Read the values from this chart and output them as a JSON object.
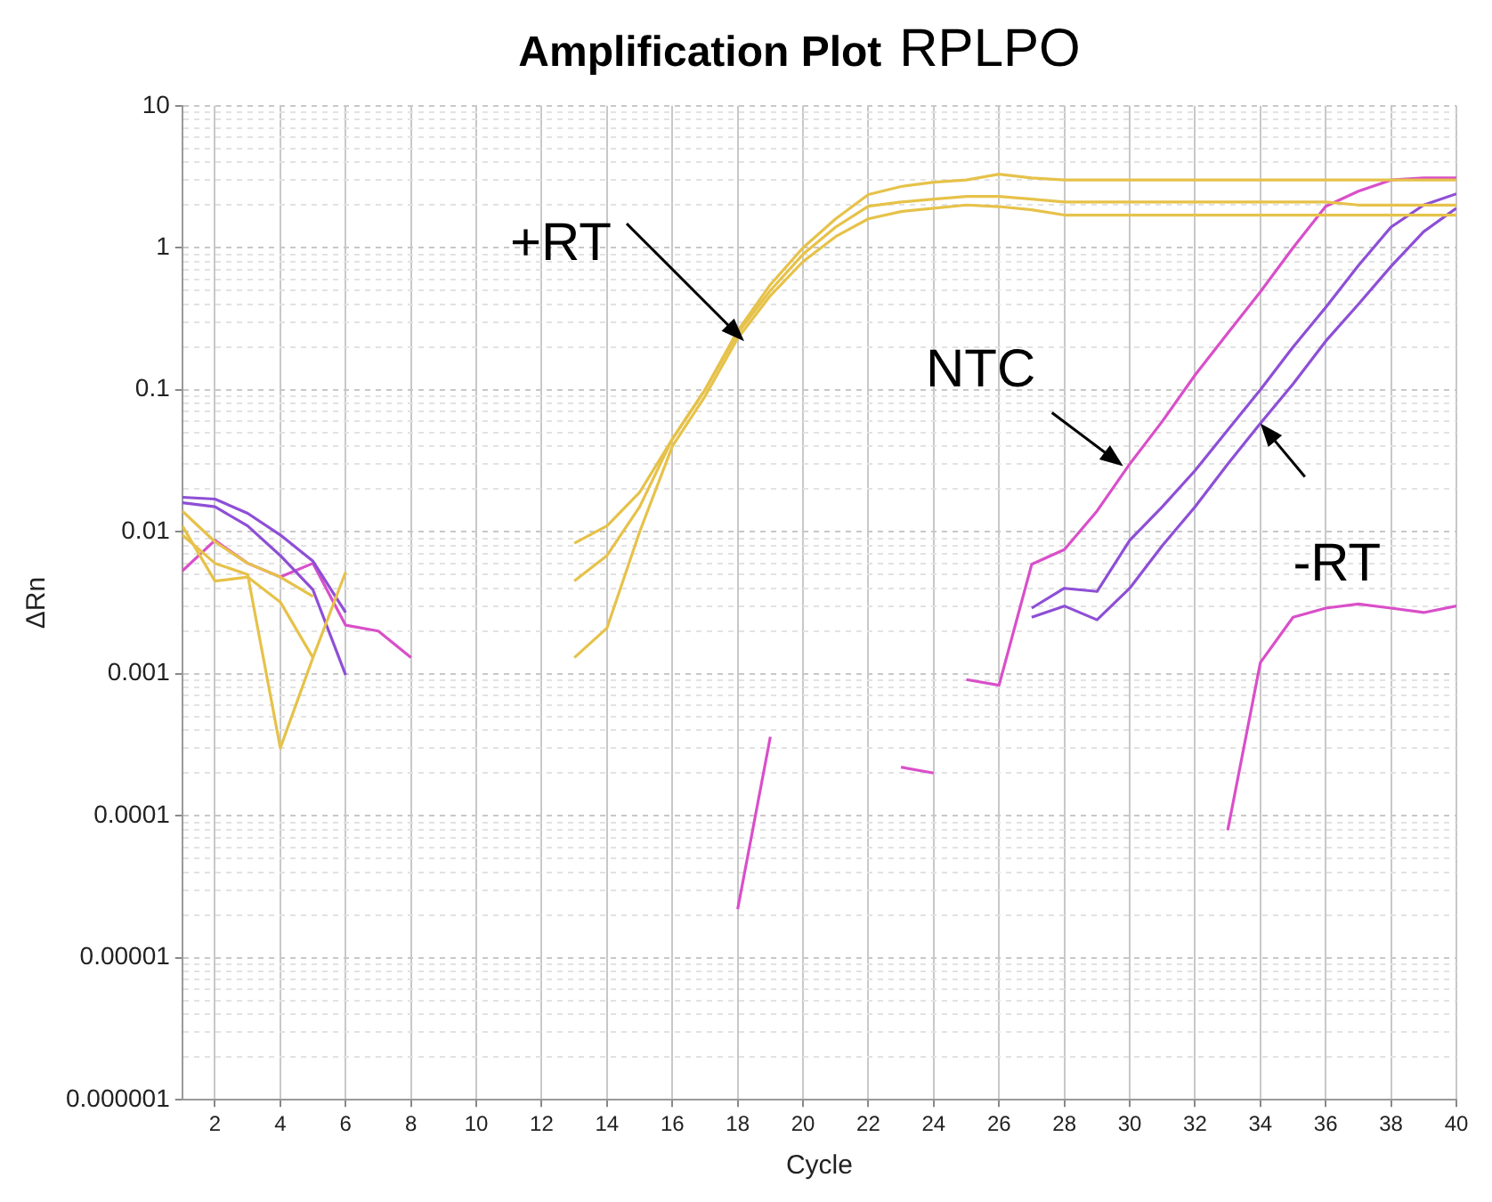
{
  "chart_data": {
    "type": "line",
    "title": "Amplification Plot",
    "subtitle": "RPLPO",
    "xlabel": "Cycle",
    "ylabel": "ΔRn",
    "x": [
      1,
      2,
      3,
      4,
      5,
      6,
      7,
      8,
      9,
      10,
      11,
      12,
      13,
      14,
      15,
      16,
      17,
      18,
      19,
      20,
      21,
      22,
      23,
      24,
      25,
      26,
      27,
      28,
      29,
      30,
      31,
      32,
      33,
      34,
      35,
      36,
      37,
      38,
      39,
      40
    ],
    "series": [
      {
        "color": "#e6c24a",
        "values": [
          0.014,
          0.0085,
          0.006,
          0.0048,
          0.0035,
          null,
          null,
          null,
          null,
          null,
          null,
          null,
          0.0083,
          0.011,
          0.019,
          0.045,
          0.1,
          0.26,
          0.55,
          1.0,
          1.6,
          2.37,
          2.7,
          2.9,
          3.0,
          3.3,
          3.1,
          3.0,
          3.0,
          3.0,
          3.0,
          3.0,
          3.0,
          3.0,
          3.0,
          3.0,
          3.0,
          3.0,
          3.0,
          3.0
        ]
      },
      {
        "color": "#e6c24a",
        "values": [
          0.011,
          0.0045,
          0.0048,
          0.0032,
          0.0013,
          null,
          null,
          null,
          null,
          null,
          null,
          null,
          0.0045,
          0.0068,
          0.015,
          0.045,
          0.1,
          0.25,
          0.5,
          0.9,
          1.4,
          1.96,
          2.1,
          2.2,
          2.3,
          2.3,
          2.2,
          2.1,
          2.1,
          2.1,
          2.1,
          2.1,
          2.1,
          2.1,
          2.1,
          2.1,
          2.0,
          2.0,
          2.0,
          2.0
        ]
      },
      {
        "color": "#e6c24a",
        "values": [
          0.0095,
          0.006,
          0.005,
          0.0003,
          0.0013,
          0.0052,
          null,
          null,
          null,
          null,
          null,
          null,
          0.0013,
          0.0021,
          0.01,
          0.04,
          0.09,
          0.23,
          0.46,
          0.8,
          1.2,
          1.6,
          1.8,
          1.9,
          2.0,
          1.95,
          1.85,
          1.7,
          1.7,
          1.7,
          1.7,
          1.7,
          1.7,
          1.7,
          1.7,
          1.7,
          1.7,
          1.7,
          1.7,
          1.7
        ]
      },
      {
        "color": "#8e4fd6",
        "values": [
          0.016,
          0.015,
          0.011,
          0.0068,
          0.0039,
          0.00098,
          null,
          null,
          null,
          null,
          null,
          null,
          null,
          null,
          null,
          null,
          null,
          null,
          null,
          null,
          null,
          null,
          null,
          null,
          null,
          null,
          0.0029,
          0.004,
          0.0038,
          0.0087,
          0.015,
          0.027,
          0.052,
          0.1,
          0.2,
          0.38,
          0.75,
          1.4,
          2.0,
          2.4
        ]
      },
      {
        "color": "#8e4fd6",
        "values": [
          0.0175,
          0.017,
          0.0135,
          0.0095,
          0.0062,
          0.0027,
          null,
          null,
          null,
          null,
          null,
          null,
          null,
          null,
          null,
          null,
          null,
          null,
          null,
          null,
          null,
          null,
          null,
          null,
          null,
          null,
          0.0025,
          0.003,
          0.0024,
          0.004,
          0.008,
          0.015,
          0.03,
          0.058,
          0.11,
          0.22,
          0.4,
          0.74,
          1.3,
          1.9
        ]
      },
      {
        "color": "#d94fc9",
        "values": [
          0.0053,
          0.0087,
          0.006,
          0.0048,
          0.006,
          0.0022,
          0.002,
          0.0013,
          null,
          null,
          null,
          null,
          null,
          null,
          null,
          null,
          null,
          null,
          null,
          null,
          null,
          null,
          null,
          null,
          0.00091,
          0.00083,
          0.0059,
          0.0075,
          0.014,
          0.03,
          0.06,
          0.127,
          0.25,
          0.49,
          1.0,
          1.96,
          2.5,
          3.0,
          3.1,
          3.1
        ]
      },
      {
        "color": "#d94fc9",
        "values": [
          null,
          null,
          null,
          null,
          null,
          null,
          null,
          null,
          null,
          null,
          null,
          null,
          null,
          null,
          null,
          null,
          null,
          2.2e-05,
          0.00036,
          null,
          null,
          null,
          0.00022,
          0.0002,
          null,
          null,
          null,
          null,
          null,
          null,
          null,
          null,
          7.9e-05,
          0.0012,
          0.0025,
          0.0029,
          0.0031,
          0.0029,
          0.0027,
          0.003
        ]
      }
    ],
    "log": "y",
    "xlim": [
      1,
      40
    ],
    "xticks": [
      2,
      4,
      6,
      8,
      10,
      12,
      14,
      16,
      18,
      20,
      22,
      24,
      26,
      28,
      30,
      32,
      34,
      36,
      38,
      40
    ],
    "ylim": [
      1e-06,
      10
    ],
    "yticks": [
      {
        "value": 1e-06,
        "label": "0.000001"
      },
      {
        "value": 2e-06,
        "label": null
      },
      {
        "value": 3e-06,
        "label": null
      },
      {
        "value": 4e-06,
        "label": null
      },
      {
        "value": 5e-06,
        "label": null
      },
      {
        "value": 6e-06,
        "label": null
      },
      {
        "value": 7e-06,
        "label": null
      },
      {
        "value": 8e-06,
        "label": null
      },
      {
        "value": 9e-06,
        "label": null
      },
      {
        "value": 1e-05,
        "label": "0.00001"
      },
      {
        "value": 2e-05,
        "label": null
      },
      {
        "value": 3e-05,
        "label": null
      },
      {
        "value": 4e-05,
        "label": null
      },
      {
        "value": 5e-05,
        "label": null
      },
      {
        "value": 6e-05,
        "label": null
      },
      {
        "value": 7e-05,
        "label": null
      },
      {
        "value": 8e-05,
        "label": null
      },
      {
        "value": 9e-05,
        "label": null
      },
      0.0001,
      {
        "value": 0.0002,
        "label": null
      },
      {
        "value": 0.0003,
        "label": null
      },
      {
        "value": 0.0004,
        "label": null
      },
      {
        "value": 0.0005,
        "label": null
      },
      {
        "value": 0.0006,
        "label": null
      },
      {
        "value": 0.0007,
        "label": null
      },
      {
        "value": 0.0008,
        "label": null
      },
      {
        "value": 0.0009,
        "label": null
      },
      0.001,
      {
        "value": 0.002,
        "label": null
      },
      {
        "value": 0.003,
        "label": null
      },
      {
        "value": 0.004,
        "label": null
      },
      {
        "value": 0.005,
        "label": null
      },
      {
        "value": 0.006,
        "label": null
      },
      {
        "value": 0.007,
        "label": null
      },
      {
        "value": 0.008,
        "label": null
      },
      {
        "value": 0.009,
        "label": null
      },
      0.01,
      {
        "value": 0.02,
        "label": null
      },
      {
        "value": 0.03,
        "label": null
      },
      {
        "value": 0.04,
        "label": null
      },
      {
        "value": 0.05,
        "label": null
      },
      {
        "value": 0.06,
        "label": null
      },
      {
        "value": 0.07,
        "label": null
      },
      {
        "value": 0.08,
        "label": null
      },
      {
        "value": 0.09,
        "label": null
      },
      0.1,
      {
        "value": 0.2,
        "label": null
      },
      {
        "value": 0.3,
        "label": null
      },
      {
        "value": 0.4,
        "label": null
      },
      {
        "value": 0.5,
        "label": null
      },
      {
        "value": 0.6,
        "label": null
      },
      {
        "value": 0.7,
        "label": null
      },
      {
        "value": 0.8,
        "label": null
      },
      {
        "value": 0.9,
        "label": null
      },
      1,
      {
        "value": 2,
        "label": null
      },
      {
        "value": 3,
        "label": null
      },
      {
        "value": 4,
        "label": null
      },
      {
        "value": 5,
        "label": null
      },
      {
        "value": 6,
        "label": null
      },
      {
        "value": 7,
        "label": null
      },
      {
        "value": 8,
        "label": null
      },
      {
        "value": 9,
        "label": null
      },
      10
    ],
    "grid": true,
    "legend": false,
    "annotations": [
      {
        "text": "+RT",
        "x": 18.2,
        "y": 0.22
      },
      {
        "text": "NTC",
        "x": 29.8,
        "y": 0.029
      },
      {
        "text": "-RT",
        "x": 34,
        "y": 0.058
      }
    ]
  }
}
